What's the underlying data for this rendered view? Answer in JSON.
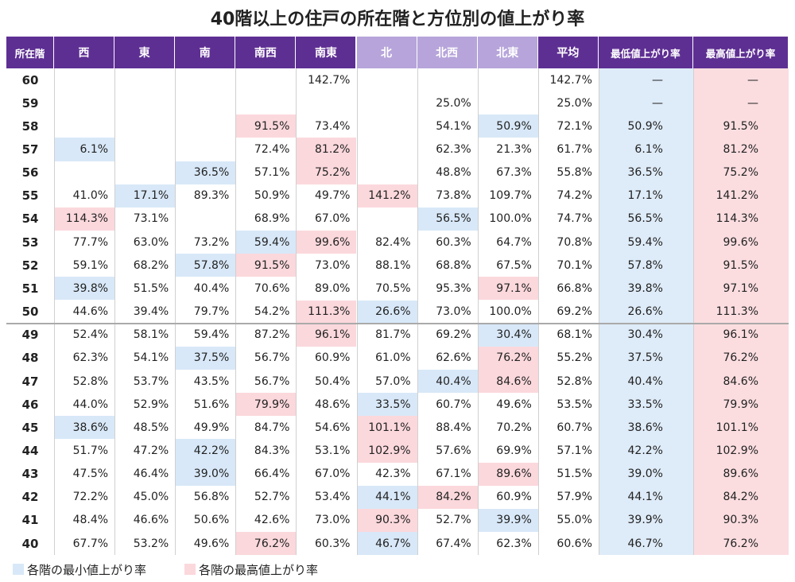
{
  "title": "40階以上の住戸の所在階と方位別の値上がり率",
  "table": {
    "headers": [
      "所在階",
      "西",
      "東",
      "南",
      "南西",
      "南東",
      "北",
      "北西",
      "北東",
      "平均",
      "最低値上がり率",
      "最高値上がり率"
    ],
    "rows": [
      {
        "floor": "60",
        "cells": [
          null,
          null,
          null,
          null,
          "142.7%",
          null,
          null,
          null,
          "142.7%",
          "—",
          "—"
        ]
      },
      {
        "floor": "59",
        "cells": [
          null,
          null,
          null,
          null,
          null,
          null,
          "25.0%",
          null,
          "25.0%",
          "—",
          "—"
        ]
      },
      {
        "floor": "58",
        "cells": [
          null,
          null,
          null,
          "91.5%",
          "73.4%",
          null,
          "54.1%",
          "50.9%",
          "72.1%",
          "50.9%",
          "91.5%"
        ]
      },
      {
        "floor": "57",
        "cells": [
          "6.1%",
          null,
          null,
          "72.4%",
          "81.2%",
          null,
          "62.3%",
          "21.3%",
          "61.7%",
          "6.1%",
          "81.2%"
        ]
      },
      {
        "floor": "56",
        "cells": [
          null,
          null,
          "36.5%",
          "57.1%",
          "75.2%",
          null,
          "48.8%",
          "67.3%",
          "55.8%",
          "36.5%",
          "75.2%"
        ]
      },
      {
        "floor": "55",
        "cells": [
          "41.0%",
          "17.1%",
          "89.3%",
          "50.9%",
          "49.7%",
          "141.2%",
          "73.8%",
          "109.7%",
          "74.2%",
          "17.1%",
          "141.2%"
        ]
      },
      {
        "floor": "54",
        "cells": [
          "114.3%",
          "73.1%",
          null,
          "68.9%",
          "67.0%",
          null,
          "56.5%",
          "100.0%",
          "74.7%",
          "56.5%",
          "114.3%"
        ]
      },
      {
        "floor": "53",
        "cells": [
          "77.7%",
          "63.0%",
          "73.2%",
          "59.4%",
          "99.6%",
          "82.4%",
          "60.3%",
          "64.7%",
          "70.8%",
          "59.4%",
          "99.6%"
        ]
      },
      {
        "floor": "52",
        "cells": [
          "59.1%",
          "68.2%",
          "57.8%",
          "91.5%",
          "73.0%",
          "88.1%",
          "68.8%",
          "67.5%",
          "70.1%",
          "57.8%",
          "91.5%"
        ]
      },
      {
        "floor": "51",
        "cells": [
          "39.8%",
          "51.5%",
          "40.4%",
          "70.6%",
          "89.0%",
          "70.5%",
          "95.3%",
          "97.1%",
          "66.8%",
          "39.8%",
          "97.1%"
        ]
      },
      {
        "floor": "50",
        "cells": [
          "44.6%",
          "39.4%",
          "79.7%",
          "54.2%",
          "111.3%",
          "26.6%",
          "73.0%",
          "100.0%",
          "69.2%",
          "26.6%",
          "111.3%"
        ]
      },
      {
        "floor": "49",
        "cells": [
          "52.4%",
          "58.1%",
          "59.4%",
          "87.2%",
          "96.1%",
          "81.7%",
          "69.2%",
          "30.4%",
          "68.1%",
          "30.4%",
          "96.1%"
        ]
      },
      {
        "floor": "48",
        "cells": [
          "62.3%",
          "54.1%",
          "37.5%",
          "56.7%",
          "60.9%",
          "61.0%",
          "62.6%",
          "76.2%",
          "55.2%",
          "37.5%",
          "76.2%"
        ]
      },
      {
        "floor": "47",
        "cells": [
          "52.8%",
          "53.7%",
          "43.5%",
          "56.7%",
          "50.4%",
          "57.0%",
          "40.4%",
          "84.6%",
          "52.8%",
          "40.4%",
          "84.6%"
        ]
      },
      {
        "floor": "46",
        "cells": [
          "44.0%",
          "52.9%",
          "51.6%",
          "79.9%",
          "48.6%",
          "33.5%",
          "60.7%",
          "49.6%",
          "53.5%",
          "33.5%",
          "79.9%"
        ]
      },
      {
        "floor": "45",
        "cells": [
          "38.6%",
          "48.5%",
          "49.9%",
          "84.7%",
          "54.6%",
          "101.1%",
          "88.4%",
          "70.2%",
          "60.7%",
          "38.6%",
          "101.1%"
        ]
      },
      {
        "floor": "44",
        "cells": [
          "51.7%",
          "47.2%",
          "42.2%",
          "84.3%",
          "53.1%",
          "102.9%",
          "57.6%",
          "69.9%",
          "57.1%",
          "42.2%",
          "102.9%"
        ]
      },
      {
        "floor": "43",
        "cells": [
          "47.5%",
          "46.4%",
          "39.0%",
          "66.4%",
          "67.0%",
          "42.3%",
          "67.1%",
          "89.6%",
          "51.5%",
          "39.0%",
          "89.6%"
        ]
      },
      {
        "floor": "42",
        "cells": [
          "72.2%",
          "45.0%",
          "56.8%",
          "52.7%",
          "53.4%",
          "44.1%",
          "84.2%",
          "60.9%",
          "57.9%",
          "44.1%",
          "84.2%"
        ]
      },
      {
        "floor": "41",
        "cells": [
          "48.4%",
          "46.6%",
          "50.6%",
          "42.6%",
          "73.0%",
          "90.3%",
          "52.7%",
          "39.9%",
          "55.0%",
          "39.9%",
          "90.3%"
        ]
      },
      {
        "floor": "40",
        "cells": [
          "67.7%",
          "53.2%",
          "49.6%",
          "76.2%",
          "60.3%",
          "46.7%",
          "67.4%",
          "62.3%",
          "60.6%",
          "46.7%",
          "76.2%"
        ]
      }
    ]
  },
  "legend": {
    "min": "各階の最小値上がり率",
    "max": "各階の最高値上がり率"
  }
}
